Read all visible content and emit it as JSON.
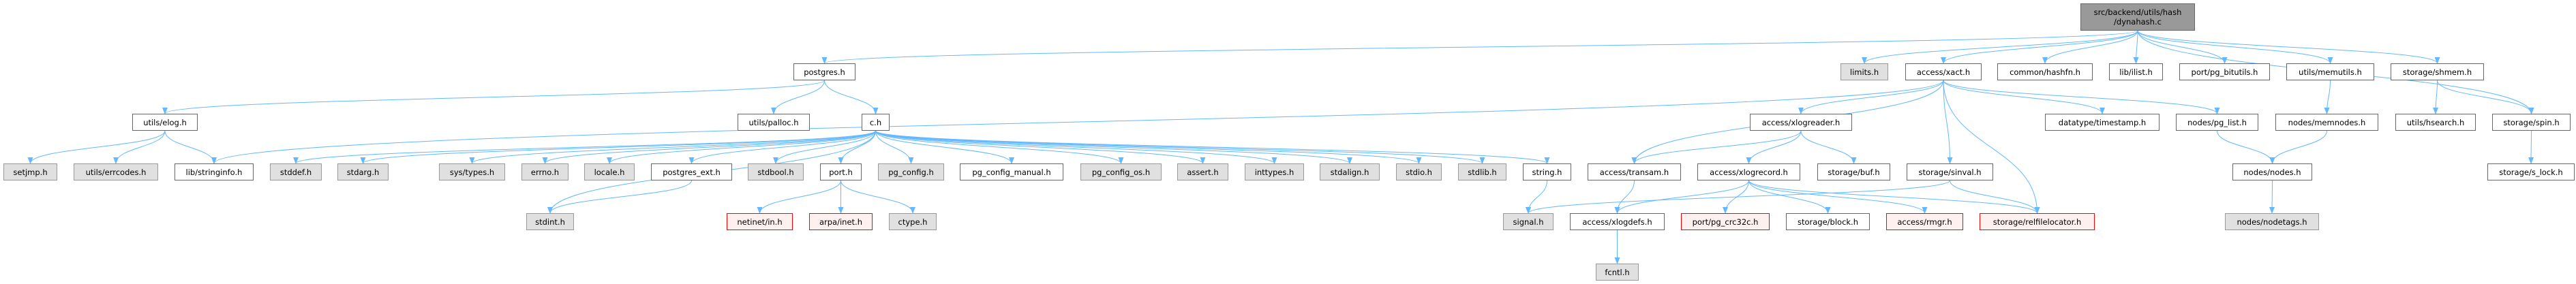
{
  "colors": {
    "edge": "#63b8ff",
    "root_fill": "#999999",
    "external_fill": "#e0e0e0",
    "missing_border": "#ff0000"
  },
  "nodes": [
    {
      "label": "src/backend/utils/hash\n/dynahash.c",
      "kind": "root"
    },
    {
      "label": "postgres.h",
      "kind": "white"
    },
    {
      "label": "limits.h",
      "kind": "gray"
    },
    {
      "label": "access/xact.h",
      "kind": "white"
    },
    {
      "label": "common/hashfn.h",
      "kind": "white"
    },
    {
      "label": "lib/ilist.h",
      "kind": "white"
    },
    {
      "label": "port/pg_bitutils.h",
      "kind": "white"
    },
    {
      "label": "utils/memutils.h",
      "kind": "white"
    },
    {
      "label": "storage/shmem.h",
      "kind": "white"
    },
    {
      "label": "utils/elog.h",
      "kind": "white"
    },
    {
      "label": "utils/palloc.h",
      "kind": "white"
    },
    {
      "label": "c.h",
      "kind": "white"
    },
    {
      "label": "access/xlogreader.h",
      "kind": "white"
    },
    {
      "label": "datatype/timestamp.h",
      "kind": "white"
    },
    {
      "label": "nodes/pg_list.h",
      "kind": "white"
    },
    {
      "label": "nodes/memnodes.h",
      "kind": "white"
    },
    {
      "label": "utils/hsearch.h",
      "kind": "white"
    },
    {
      "label": "storage/spin.h",
      "kind": "white"
    },
    {
      "label": "setjmp.h",
      "kind": "gray"
    },
    {
      "label": "utils/errcodes.h",
      "kind": "gray"
    },
    {
      "label": "lib/stringinfo.h",
      "kind": "white"
    },
    {
      "label": "stddef.h",
      "kind": "gray"
    },
    {
      "label": "stdarg.h",
      "kind": "gray"
    },
    {
      "label": "sys/types.h",
      "kind": "gray"
    },
    {
      "label": "errno.h",
      "kind": "gray"
    },
    {
      "label": "locale.h",
      "kind": "gray"
    },
    {
      "label": "postgres_ext.h",
      "kind": "white"
    },
    {
      "label": "stdbool.h",
      "kind": "gray"
    },
    {
      "label": "port.h",
      "kind": "white"
    },
    {
      "label": "pg_config.h",
      "kind": "gray"
    },
    {
      "label": "pg_config_manual.h",
      "kind": "white"
    },
    {
      "label": "pg_config_os.h",
      "kind": "gray"
    },
    {
      "label": "assert.h",
      "kind": "gray"
    },
    {
      "label": "inttypes.h",
      "kind": "gray"
    },
    {
      "label": "stdalign.h",
      "kind": "gray"
    },
    {
      "label": "stdio.h",
      "kind": "gray"
    },
    {
      "label": "stdlib.h",
      "kind": "gray"
    },
    {
      "label": "string.h",
      "kind": "white"
    },
    {
      "label": "access/transam.h",
      "kind": "white"
    },
    {
      "label": "access/xlogrecord.h",
      "kind": "white"
    },
    {
      "label": "storage/buf.h",
      "kind": "white"
    },
    {
      "label": "storage/sinval.h",
      "kind": "white"
    },
    {
      "label": "nodes/nodes.h",
      "kind": "white"
    },
    {
      "label": "storage/s_lock.h",
      "kind": "white"
    },
    {
      "label": "stdint.h",
      "kind": "gray"
    },
    {
      "label": "netinet/in.h",
      "kind": "red"
    },
    {
      "label": "arpa/inet.h",
      "kind": "red"
    },
    {
      "label": "ctype.h",
      "kind": "gray"
    },
    {
      "label": "signal.h",
      "kind": "gray"
    },
    {
      "label": "access/xlogdefs.h",
      "kind": "white"
    },
    {
      "label": "port/pg_crc32c.h",
      "kind": "red"
    },
    {
      "label": "storage/block.h",
      "kind": "white"
    },
    {
      "label": "access/rmgr.h",
      "kind": "red"
    },
    {
      "label": "storage/relfilelocator.h",
      "kind": "red"
    },
    {
      "label": "nodes/nodetags.h",
      "kind": "gray"
    },
    {
      "label": "fcntl.h",
      "kind": "gray"
    }
  ],
  "edges": [
    [
      0,
      1
    ],
    [
      0,
      2
    ],
    [
      0,
      3
    ],
    [
      0,
      4
    ],
    [
      0,
      5
    ],
    [
      0,
      6
    ],
    [
      0,
      7
    ],
    [
      0,
      8
    ],
    [
      0,
      17
    ],
    [
      1,
      9
    ],
    [
      1,
      10
    ],
    [
      1,
      11
    ],
    [
      9,
      18
    ],
    [
      9,
      19
    ],
    [
      9,
      20
    ],
    [
      11,
      21
    ],
    [
      11,
      22
    ],
    [
      11,
      23
    ],
    [
      11,
      24
    ],
    [
      11,
      25
    ],
    [
      11,
      26
    ],
    [
      11,
      27
    ],
    [
      11,
      28
    ],
    [
      11,
      29
    ],
    [
      11,
      30
    ],
    [
      11,
      31
    ],
    [
      11,
      32
    ],
    [
      11,
      33
    ],
    [
      11,
      34
    ],
    [
      11,
      35
    ],
    [
      11,
      36
    ],
    [
      11,
      37
    ],
    [
      11,
      44
    ],
    [
      26,
      44
    ],
    [
      28,
      45
    ],
    [
      28,
      46
    ],
    [
      28,
      47
    ],
    [
      37,
      48
    ],
    [
      3,
      20
    ],
    [
      3,
      38
    ],
    [
      3,
      12
    ],
    [
      3,
      13
    ],
    [
      3,
      14
    ],
    [
      3,
      41
    ],
    [
      3,
      53
    ],
    [
      12,
      38
    ],
    [
      12,
      39
    ],
    [
      12,
      40
    ],
    [
      38,
      49
    ],
    [
      39,
      49
    ],
    [
      39,
      50
    ],
    [
      39,
      51
    ],
    [
      39,
      52
    ],
    [
      39,
      53
    ],
    [
      41,
      48
    ],
    [
      41,
      53
    ],
    [
      49,
      55
    ],
    [
      14,
      42
    ],
    [
      7,
      15
    ],
    [
      15,
      42
    ],
    [
      42,
      54
    ],
    [
      8,
      16
    ],
    [
      8,
      17
    ],
    [
      17,
      43
    ]
  ]
}
